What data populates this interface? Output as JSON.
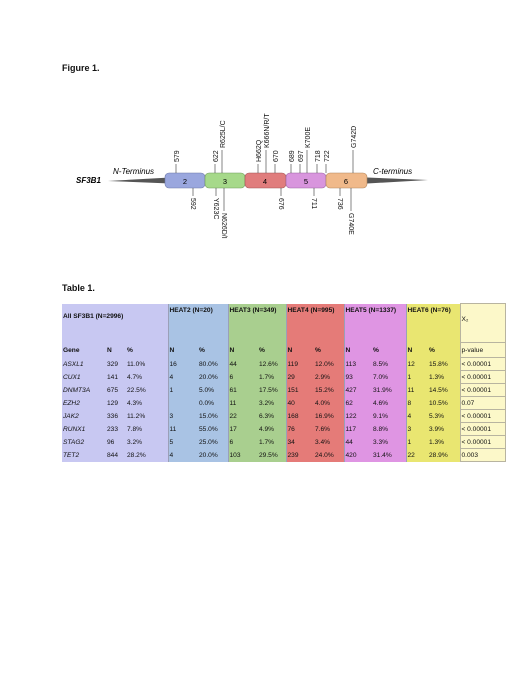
{
  "figure": {
    "title": "Figure 1.",
    "gene": "SF3B1",
    "n_terminus": "N-Terminus",
    "c_terminus": "C-terminus",
    "domains": [
      {
        "label": "2",
        "color": "#9aa7de"
      },
      {
        "label": "3",
        "color": "#a6d98a"
      },
      {
        "label": "4",
        "color": "#e07d7d"
      },
      {
        "label": "5",
        "color": "#d895dd"
      },
      {
        "label": "6",
        "color": "#f0b98a"
      }
    ],
    "top_labels": [
      "579",
      "622",
      "R625L/C",
      "H662Q",
      "K666N/R/T",
      "670",
      "689",
      "697",
      "K700E",
      "718",
      "722",
      "G742D"
    ],
    "bottom_labels": [
      "592",
      "Y623C",
      "N626D/I",
      "676",
      "711",
      "736",
      "G740E"
    ]
  },
  "table": {
    "title": "Table 1.",
    "groups": [
      "All SF3B1 (N=2996)",
      "HEAT2 (N=20)",
      "HEAT3 (N=349)",
      "HEAT4 (N=995)",
      "HEAT5 (N=1337)",
      "HEAT6 (N=76)",
      "X₂"
    ],
    "headers": [
      "Gene",
      "N",
      "%",
      "N",
      "%",
      "N",
      "%",
      "N",
      "%",
      "N",
      "%",
      "N",
      "%",
      "p-value"
    ],
    "rows": [
      [
        "ASXL1",
        "329",
        "11.0%",
        "16",
        "80.0%",
        "44",
        "12.6%",
        "119",
        "12.0%",
        "113",
        "8.5%",
        "12",
        "15.8%",
        "< 0.00001"
      ],
      [
        "CUX1",
        "141",
        "4.7%",
        "4",
        "20.0%",
        "6",
        "1.7%",
        "29",
        "2.9%",
        "93",
        "7.0%",
        "1",
        "1.3%",
        "< 0.00001"
      ],
      [
        "DNMT3A",
        "675",
        "22.5%",
        "1",
        "5.0%",
        "61",
        "17.5%",
        "151",
        "15.2%",
        "427",
        "31.9%",
        "11",
        "14.5%",
        "< 0.00001"
      ],
      [
        "EZH2",
        "129",
        "4.3%",
        "",
        "0.0%",
        "11",
        "3.2%",
        "40",
        "4.0%",
        "62",
        "4.6%",
        "8",
        "10.5%",
        "0.07"
      ],
      [
        "JAK2",
        "336",
        "11.2%",
        "3",
        "15.0%",
        "22",
        "6.3%",
        "168",
        "16.9%",
        "122",
        "9.1%",
        "4",
        "5.3%",
        "< 0.00001"
      ],
      [
        "RUNX1",
        "233",
        "7.8%",
        "11",
        "55.0%",
        "17",
        "4.9%",
        "76",
        "7.6%",
        "117",
        "8.8%",
        "3",
        "3.9%",
        "< 0.00001"
      ],
      [
        "STAG2",
        "96",
        "3.2%",
        "5",
        "25.0%",
        "6",
        "1.7%",
        "34",
        "3.4%",
        "44",
        "3.3%",
        "1",
        "1.3%",
        "< 0.00001"
      ],
      [
        "TET2",
        "844",
        "28.2%",
        "4",
        "20.0%",
        "103",
        "29.5%",
        "239",
        "24.0%",
        "420",
        "31.4%",
        "22",
        "28.9%",
        "0.003"
      ]
    ]
  }
}
